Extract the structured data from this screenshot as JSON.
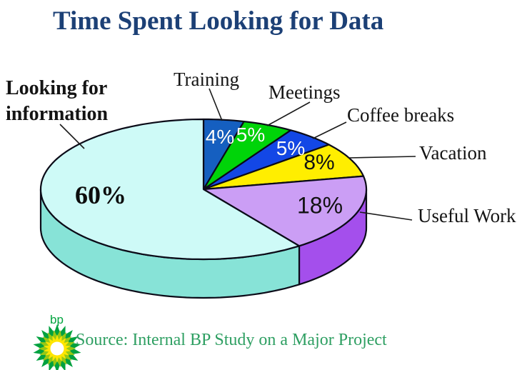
{
  "slide": {
    "title": "Time Spent Looking for Data",
    "source_note": "Source: Internal BP Study on a Major Project",
    "logo_text": "bp"
  },
  "colors": {
    "title_navy": "#1c4076",
    "source_green": "#2e9f62",
    "logo_green": "#00a33e",
    "slice_outline": "#0b0b18"
  },
  "chart_data": {
    "type": "pie",
    "title": "Time Spent Looking for Data",
    "units": "%",
    "effect": "3d",
    "start_angle_deg": 0,
    "direction": "clockwise",
    "total": 100,
    "legend_position": "callout-labels",
    "slices": [
      {
        "id": "training",
        "label": "Training",
        "value": 4,
        "pct_label": "4%",
        "top_color": "#155fc0",
        "text_color": "#ffffff"
      },
      {
        "id": "meetings",
        "label": "Meetings",
        "value": 5,
        "pct_label": "5%",
        "top_color": "#00d409",
        "text_color": "#ffffff"
      },
      {
        "id": "coffee-breaks",
        "label": "Coffee breaks",
        "value": 5,
        "pct_label": "5%",
        "top_color": "#1347e6",
        "text_color": "#ffffff"
      },
      {
        "id": "vacation",
        "label": "Vacation",
        "value": 8,
        "pct_label": "8%",
        "top_color": "#ffee00",
        "text_color": "#111111"
      },
      {
        "id": "useful-work",
        "label": "Useful Work",
        "value": 18,
        "pct_label": "18%",
        "top_color": "#cb9ef5",
        "side_color": "#a44fec",
        "text_color": "#111111"
      },
      {
        "id": "looking-for-information",
        "label": "Looking for information",
        "value": 60,
        "pct_label": "60%",
        "top_color": "#cefaf7",
        "side_color": "#87e3d7",
        "text_color": "#0d0d0d"
      }
    ]
  }
}
